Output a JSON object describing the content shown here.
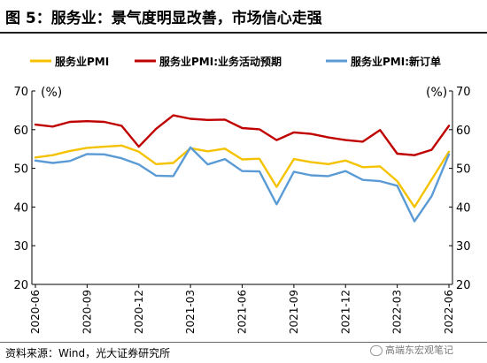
{
  "header": {
    "title": "图 5：服务业：景气度明显改善，市场信心走强"
  },
  "footer": {
    "source": "资料来源：Wind，光大证券研究所",
    "watermark": "高端东宏观笔记"
  },
  "chart_data": {
    "type": "line",
    "left_unit": "(%)",
    "right_unit": "(%)",
    "ylim": [
      20,
      70
    ],
    "yticks": [
      20,
      30,
      40,
      50,
      60,
      70
    ],
    "xtick_labels": [
      "2020-06",
      "2020-09",
      "2020-12",
      "2021-03",
      "2021-06",
      "2021-09",
      "2021-12",
      "2022-03",
      "2022-06"
    ],
    "x": [
      "2020-06",
      "2020-07",
      "2020-08",
      "2020-09",
      "2020-10",
      "2020-11",
      "2020-12",
      "2021-01",
      "2021-02",
      "2021-03",
      "2021-04",
      "2021-05",
      "2021-06",
      "2021-07",
      "2021-08",
      "2021-09",
      "2021-10",
      "2021-11",
      "2021-12",
      "2022-01",
      "2022-02",
      "2022-03",
      "2022-04",
      "2022-05",
      "2022-06"
    ],
    "legend_position": "top",
    "grid": false,
    "series": [
      {
        "name": "服务业PMI",
        "color": "#F5C200",
        "values": [
          52.8,
          53.4,
          54.5,
          55.3,
          55.6,
          55.9,
          54.3,
          51.1,
          51.4,
          55.2,
          54.4,
          55.1,
          52.3,
          52.5,
          45.2,
          52.4,
          51.6,
          51.1,
          52.0,
          50.3,
          50.5,
          46.7,
          40.0,
          47.1,
          54.3
        ]
      },
      {
        "name": "服务业PMI:业务活动预期",
        "color": "#C00000",
        "values": [
          61.3,
          60.8,
          62.0,
          62.2,
          62.0,
          61.0,
          55.6,
          60.2,
          63.7,
          62.8,
          62.5,
          62.6,
          60.4,
          60.1,
          57.3,
          59.3,
          58.9,
          58.0,
          57.3,
          56.9,
          59.9,
          53.8,
          53.4,
          54.8,
          61.0
        ]
      },
      {
        "name": "服务业PMI:新订单",
        "color": "#5B9BD5",
        "values": [
          52.0,
          51.4,
          51.9,
          53.7,
          53.6,
          52.6,
          51.0,
          48.1,
          48.0,
          55.4,
          51.0,
          52.4,
          49.3,
          49.2,
          40.7,
          49.1,
          48.2,
          48.0,
          49.3,
          47.0,
          46.7,
          45.5,
          36.3,
          42.8,
          53.6
        ]
      }
    ]
  }
}
